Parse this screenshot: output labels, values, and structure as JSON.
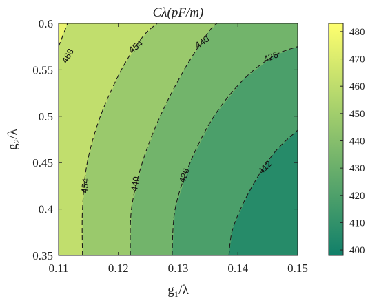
{
  "chart_data": {
    "type": "contour",
    "title": "Cλ(pF/m)",
    "xlabel": "g₁/λ",
    "ylabel": "g₂/λ",
    "xlim": [
      0.11,
      0.15
    ],
    "ylim": [
      0.35,
      0.6
    ],
    "x_ticks": [
      "0.11",
      "0.12",
      "0.13",
      "0.14",
      "0.15"
    ],
    "y_ticks": [
      "0.35",
      "0.4",
      "0.45",
      "0.5",
      "0.55",
      "0.6"
    ],
    "x_tick_values": [
      0.11,
      0.12,
      0.13,
      0.14,
      0.15
    ],
    "y_tick_values": [
      0.35,
      0.4,
      0.45,
      0.5,
      0.55,
      0.6
    ],
    "colorbar": {
      "min": 398,
      "max": 483,
      "ticks": [
        "400",
        "410",
        "420",
        "430",
        "440",
        "450",
        "460",
        "470",
        "480"
      ],
      "tick_values": [
        400,
        410,
        420,
        430,
        440,
        450,
        460,
        470,
        480
      ]
    },
    "levels": [
      412,
      426,
      440,
      454,
      468
    ],
    "contour_lines": [
      {
        "level": 468,
        "label": "468",
        "points": [
          [
            0.11,
            0.575
          ],
          [
            0.1115,
            0.6
          ]
        ]
      },
      {
        "level": 454,
        "label": "454",
        "points": [
          [
            0.114,
            0.35
          ],
          [
            0.114,
            0.4
          ],
          [
            0.1148,
            0.45
          ],
          [
            0.117,
            0.5
          ],
          [
            0.1205,
            0.55
          ],
          [
            0.124,
            0.585
          ],
          [
            0.1265,
            0.6
          ]
        ]
      },
      {
        "level": 440,
        "label": "440",
        "points": [
          [
            0.122,
            0.35
          ],
          [
            0.1222,
            0.4
          ],
          [
            0.124,
            0.45
          ],
          [
            0.127,
            0.5
          ],
          [
            0.131,
            0.55
          ],
          [
            0.135,
            0.59
          ],
          [
            0.1365,
            0.6
          ]
        ]
      },
      {
        "level": 426,
        "label": "426",
        "points": [
          [
            0.129,
            0.35
          ],
          [
            0.1295,
            0.4
          ],
          [
            0.132,
            0.45
          ],
          [
            0.136,
            0.5
          ],
          [
            0.141,
            0.54
          ],
          [
            0.146,
            0.565
          ],
          [
            0.15,
            0.575
          ]
        ]
      },
      {
        "level": 412,
        "label": "412",
        "points": [
          [
            0.1385,
            0.35
          ],
          [
            0.1392,
            0.38
          ],
          [
            0.142,
            0.42
          ],
          [
            0.146,
            0.46
          ],
          [
            0.15,
            0.485
          ]
        ]
      }
    ],
    "inline_labels": [
      {
        "text": "468",
        "x": 0.1115,
        "y": 0.565,
        "angle": -60
      },
      {
        "text": "454",
        "x": 0.1229,
        "y": 0.575,
        "angle": -38
      },
      {
        "text": "440",
        "x": 0.134,
        "y": 0.58,
        "angle": -35
      },
      {
        "text": "426",
        "x": 0.1455,
        "y": 0.564,
        "angle": -22
      },
      {
        "text": "454",
        "x": 0.1144,
        "y": 0.425,
        "angle": -85
      },
      {
        "text": "440",
        "x": 0.1228,
        "y": 0.427,
        "angle": -80
      },
      {
        "text": "426",
        "x": 0.131,
        "y": 0.436,
        "angle": -72
      },
      {
        "text": "412",
        "x": 0.1445,
        "y": 0.445,
        "angle": -45
      }
    ]
  }
}
